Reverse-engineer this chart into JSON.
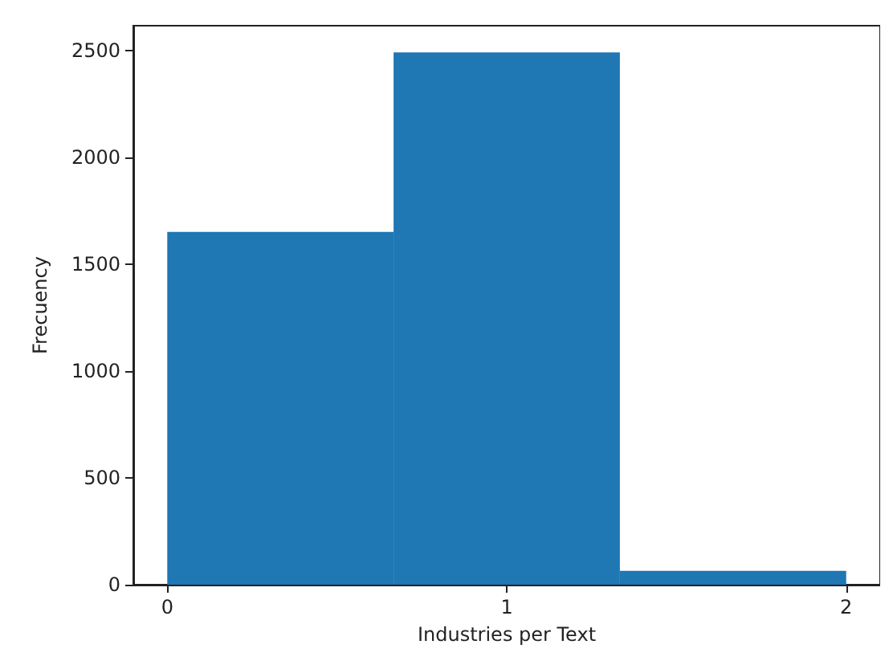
{
  "chart_data": {
    "type": "histogram",
    "xlabel": "Industries per Text",
    "ylabel": "Frecuency",
    "bins": [
      0,
      0.6667,
      1.3333,
      2
    ],
    "values": [
      1650,
      2490,
      65
    ],
    "color": "#1f77b4",
    "xlim": [
      -0.1,
      2.1
    ],
    "xticks": [
      0,
      1,
      2
    ],
    "ylim": [
      0,
      2615
    ],
    "yticks": [
      0,
      500,
      1000,
      1500,
      2000,
      2500
    ],
    "grid": false
  }
}
